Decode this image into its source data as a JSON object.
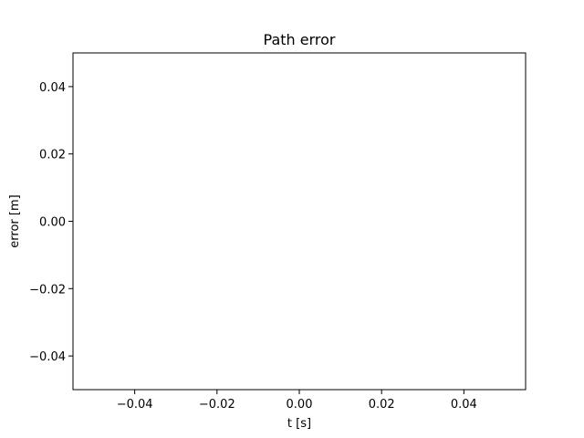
{
  "chart_data": {
    "type": "line",
    "title": "Path error",
    "xlabel": "t [s]",
    "ylabel": "error [m]",
    "xlim": [
      -0.055,
      0.055
    ],
    "ylim": [
      -0.05,
      0.05
    ],
    "xticks": [
      -0.04,
      -0.02,
      0.0,
      0.02,
      0.04
    ],
    "xtick_labels": [
      "−0.04",
      "−0.02",
      "0.00",
      "0.02",
      "0.04"
    ],
    "yticks": [
      -0.04,
      -0.02,
      0.0,
      0.02,
      0.04
    ],
    "ytick_labels": [
      "−0.04",
      "−0.02",
      "0.00",
      "0.02",
      "0.04"
    ],
    "grid": false,
    "legend": "none",
    "series": []
  }
}
